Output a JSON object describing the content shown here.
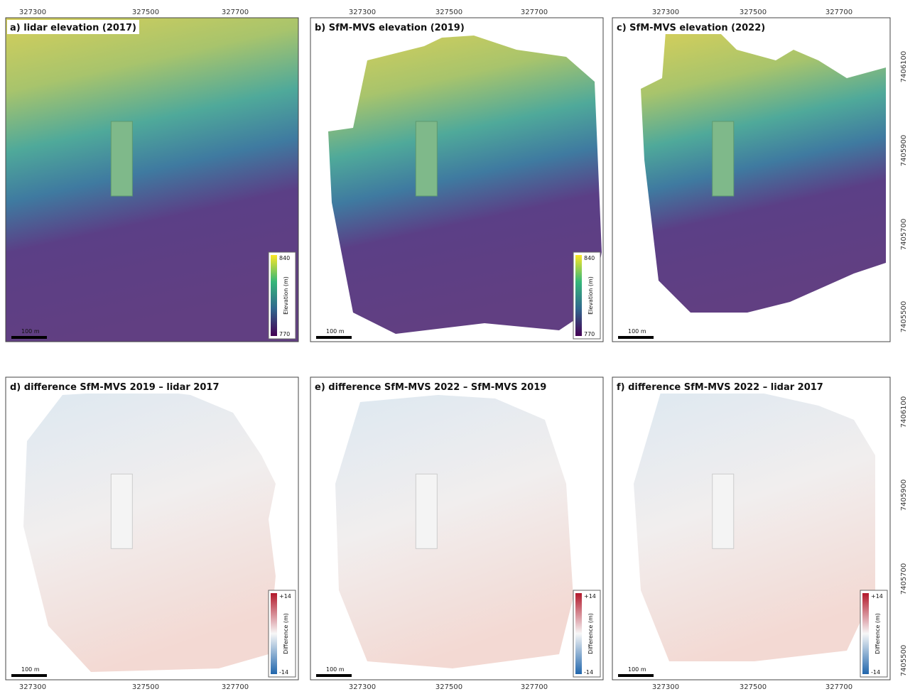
{
  "panels": [
    {
      "title": "a) lidar elevation (2017)",
      "colorbar": {
        "label": "Elevation (m)",
        "max": "840",
        "min": "770"
      },
      "scale_bar": "100 m"
    },
    {
      "title": "b) SfM-MVS elevation (2019)",
      "colorbar": {
        "label": "Elevation (m)",
        "max": "840",
        "min": "770"
      },
      "scale_bar": "100 m"
    },
    {
      "title": "c) SfM-MVS elevation (2022)",
      "scale_bar": "100 m"
    },
    {
      "title": "d) difference SfM-MVS 2019 – lidar 2017",
      "colorbar": {
        "label": "Difference (m)",
        "max": "+14",
        "min": "-14"
      },
      "scale_bar": "100 m"
    },
    {
      "title": "e) difference SfM-MVS 2022 – SfM-MVS 2019",
      "colorbar": {
        "label": "Difference (m)",
        "max": "+14",
        "min": "-14"
      },
      "scale_bar": "100 m"
    },
    {
      "title": "f) difference SfM-MVS 2022 – lidar 2017",
      "colorbar": {
        "label": "Difference (m)",
        "max": "+14",
        "min": "-14"
      },
      "scale_bar": "100 m"
    }
  ],
  "x_ticks": [
    "327300",
    "327500",
    "327700"
  ],
  "y_ticks": [
    "7406100",
    "7405900",
    "7405700",
    "7405500"
  ]
}
